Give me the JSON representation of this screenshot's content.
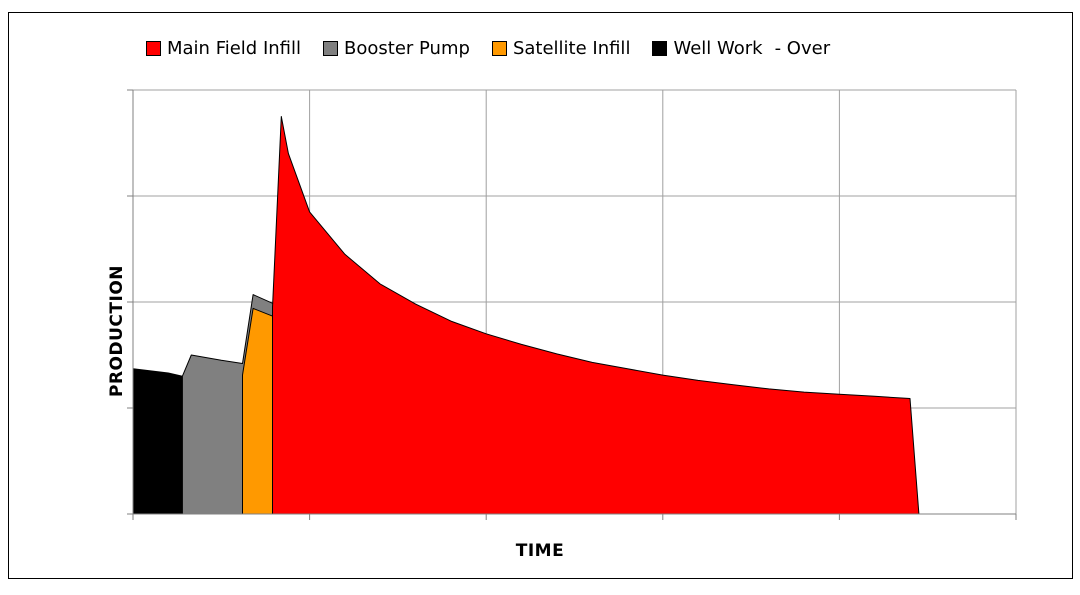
{
  "chart_data": {
    "type": "area",
    "stacked": true,
    "title": "",
    "xlabel": "TIME",
    "ylabel": "PRODUCTION",
    "xlim": [
      0,
      5
    ],
    "ylim": [
      0,
      4
    ],
    "grid": true,
    "legend_position": "top",
    "legend_note": "- Over",
    "series": [
      {
        "name": "Well Work",
        "color": "#000000",
        "points": [
          [
            0.0,
            1.37
          ],
          [
            0.1,
            1.35
          ],
          [
            0.2,
            1.33
          ],
          [
            0.28,
            1.3
          ],
          [
            0.33,
            1.36
          ],
          [
            0.5,
            1.33
          ],
          [
            0.62,
            1.31
          ],
          [
            0.8,
            1.28
          ],
          [
            1.0,
            1.25
          ],
          [
            1.2,
            1.22
          ],
          [
            1.4,
            1.19
          ],
          [
            1.6,
            1.16
          ],
          [
            1.8,
            1.13
          ],
          [
            2.0,
            1.1
          ],
          [
            2.2,
            1.07
          ],
          [
            2.4,
            1.04
          ],
          [
            2.6,
            1.01
          ],
          [
            2.8,
            0.99
          ],
          [
            3.0,
            0.97
          ],
          [
            3.16,
            0.95
          ],
          [
            3.21,
            0.0
          ]
        ]
      },
      {
        "name": "Booster Pump",
        "color": "#808080",
        "points": [
          [
            0.28,
            1.3
          ],
          [
            0.33,
            1.5
          ],
          [
            0.5,
            1.45
          ],
          [
            0.62,
            1.42
          ],
          [
            0.68,
            2.07
          ],
          [
            0.8,
            1.98
          ],
          [
            1.0,
            1.83
          ],
          [
            1.2,
            1.73
          ],
          [
            1.4,
            1.63
          ],
          [
            1.6,
            1.55
          ],
          [
            1.8,
            1.48
          ],
          [
            2.0,
            1.42
          ],
          [
            2.2,
            1.35
          ],
          [
            2.4,
            1.3
          ],
          [
            2.6,
            1.24
          ],
          [
            2.8,
            1.2
          ],
          [
            3.0,
            1.16
          ],
          [
            3.21,
            1.13
          ],
          [
            3.4,
            1.1
          ],
          [
            3.6,
            1.07
          ],
          [
            3.71,
            1.05
          ],
          [
            3.9,
            1.05
          ],
          [
            4.0,
            1.04
          ],
          [
            4.2,
            1.03
          ],
          [
            4.21,
            0.0
          ]
        ]
      },
      {
        "name": "Satellite Infill",
        "color": "#ff9900",
        "points": [
          [
            0.62,
            1.31
          ],
          [
            0.68,
            1.94
          ],
          [
            0.8,
            1.86
          ],
          [
            1.0,
            1.73
          ],
          [
            1.2,
            1.62
          ],
          [
            1.4,
            1.53
          ],
          [
            1.6,
            1.45
          ],
          [
            1.8,
            1.38
          ],
          [
            2.0,
            1.32
          ],
          [
            2.2,
            1.26
          ],
          [
            2.4,
            1.21
          ],
          [
            2.6,
            1.15
          ],
          [
            2.8,
            1.11
          ],
          [
            3.0,
            1.08
          ],
          [
            3.16,
            1.05
          ],
          [
            3.21,
            1.05
          ],
          [
            3.4,
            1.04
          ],
          [
            3.6,
            1.03
          ],
          [
            3.71,
            1.02
          ],
          [
            3.74,
            0.0
          ]
        ]
      },
      {
        "name": "Main Field Infill",
        "color": "#ff0000",
        "points": [
          [
            0.79,
            1.95
          ],
          [
            0.84,
            3.75
          ],
          [
            0.88,
            3.4
          ],
          [
            1.0,
            2.85
          ],
          [
            1.2,
            2.45
          ],
          [
            1.4,
            2.17
          ],
          [
            1.6,
            1.98
          ],
          [
            1.8,
            1.82
          ],
          [
            2.0,
            1.7
          ],
          [
            2.2,
            1.6
          ],
          [
            2.4,
            1.51
          ],
          [
            2.6,
            1.43
          ],
          [
            2.8,
            1.37
          ],
          [
            3.0,
            1.31
          ],
          [
            3.2,
            1.26
          ],
          [
            3.4,
            1.22
          ],
          [
            3.6,
            1.18
          ],
          [
            3.8,
            1.15
          ],
          [
            4.0,
            1.13
          ],
          [
            4.2,
            1.11
          ],
          [
            4.4,
            1.09
          ],
          [
            4.45,
            0.0
          ]
        ]
      }
    ],
    "legend_order": [
      "Main Field Infill",
      "Booster Pump",
      "Satellite Infill",
      "Well Work"
    ]
  }
}
